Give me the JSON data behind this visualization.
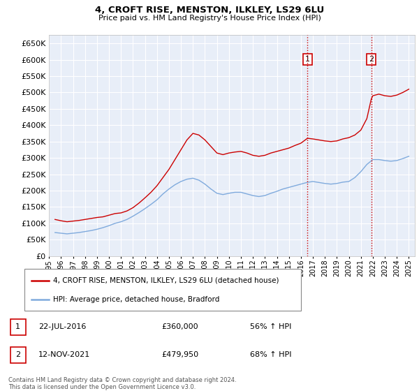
{
  "title": "4, CROFT RISE, MENSTON, ILKLEY, LS29 6LU",
  "subtitle": "Price paid vs. HM Land Registry's House Price Index (HPI)",
  "yticks": [
    0,
    50000,
    100000,
    150000,
    200000,
    250000,
    300000,
    350000,
    400000,
    450000,
    500000,
    550000,
    600000,
    650000
  ],
  "ylim": [
    0,
    675000
  ],
  "xlim_start": 1995.0,
  "xlim_end": 2025.5,
  "background_color": "#ffffff",
  "plot_bg_color": "#e8eef8",
  "grid_color": "#ffffff",
  "house_color": "#cc0000",
  "hpi_color": "#7faadd",
  "vline_color": "#cc0000",
  "vline_style": ":",
  "ann1_x": 2016.55,
  "ann2_x": 2021.87,
  "ann1_label": "1",
  "ann2_label": "2",
  "legend_house": "4, CROFT RISE, MENSTON, ILKLEY, LS29 6LU (detached house)",
  "legend_hpi": "HPI: Average price, detached house, Bradford",
  "note1_label": "1",
  "note1_date": "22-JUL-2016",
  "note1_price": "£360,000",
  "note1_hpi": "56% ↑ HPI",
  "note2_label": "2",
  "note2_date": "12-NOV-2021",
  "note2_price": "£479,950",
  "note2_hpi": "68% ↑ HPI",
  "footer": "Contains HM Land Registry data © Crown copyright and database right 2024.\nThis data is licensed under the Open Government Licence v3.0.",
  "house_x": [
    1995.5,
    1996.0,
    1996.5,
    1997.0,
    1997.5,
    1998.0,
    1998.5,
    1999.0,
    1999.5,
    2000.0,
    2000.5,
    2001.0,
    2001.5,
    2002.0,
    2002.5,
    2003.0,
    2003.5,
    2004.0,
    2004.5,
    2005.0,
    2005.5,
    2006.0,
    2006.5,
    2007.0,
    2007.5,
    2008.0,
    2008.5,
    2009.0,
    2009.5,
    2010.0,
    2010.5,
    2011.0,
    2011.5,
    2012.0,
    2012.5,
    2013.0,
    2013.5,
    2014.0,
    2014.5,
    2015.0,
    2015.5,
    2016.0,
    2016.55,
    2017.0,
    2017.5,
    2018.0,
    2018.5,
    2019.0,
    2019.5,
    2020.0,
    2020.5,
    2021.0,
    2021.5,
    2021.87,
    2022.0,
    2022.5,
    2023.0,
    2023.5,
    2024.0,
    2024.5,
    2025.0
  ],
  "house_y": [
    112000,
    108000,
    105000,
    107000,
    109000,
    112000,
    115000,
    118000,
    120000,
    125000,
    130000,
    132000,
    138000,
    148000,
    162000,
    178000,
    195000,
    215000,
    240000,
    265000,
    295000,
    325000,
    355000,
    375000,
    370000,
    355000,
    335000,
    315000,
    310000,
    315000,
    318000,
    320000,
    315000,
    308000,
    305000,
    308000,
    315000,
    320000,
    325000,
    330000,
    338000,
    345000,
    360000,
    358000,
    355000,
    352000,
    350000,
    352000,
    358000,
    362000,
    370000,
    385000,
    420000,
    479950,
    490000,
    495000,
    490000,
    488000,
    492000,
    500000,
    510000
  ],
  "hpi_x": [
    1995.5,
    1996.0,
    1996.5,
    1997.0,
    1997.5,
    1998.0,
    1998.5,
    1999.0,
    1999.5,
    2000.0,
    2000.5,
    2001.0,
    2001.5,
    2002.0,
    2002.5,
    2003.0,
    2003.5,
    2004.0,
    2004.5,
    2005.0,
    2005.5,
    2006.0,
    2006.5,
    2007.0,
    2007.5,
    2008.0,
    2008.5,
    2009.0,
    2009.5,
    2010.0,
    2010.5,
    2011.0,
    2011.5,
    2012.0,
    2012.5,
    2013.0,
    2013.5,
    2014.0,
    2014.5,
    2015.0,
    2015.5,
    2016.0,
    2016.5,
    2017.0,
    2017.5,
    2018.0,
    2018.5,
    2019.0,
    2019.5,
    2020.0,
    2020.5,
    2021.0,
    2021.5,
    2022.0,
    2022.5,
    2023.0,
    2023.5,
    2024.0,
    2024.5,
    2025.0
  ],
  "hpi_y": [
    72000,
    70000,
    68000,
    70000,
    72000,
    75000,
    78000,
    82000,
    87000,
    93000,
    100000,
    105000,
    112000,
    122000,
    133000,
    145000,
    158000,
    172000,
    190000,
    205000,
    218000,
    228000,
    235000,
    238000,
    232000,
    220000,
    205000,
    192000,
    188000,
    192000,
    195000,
    195000,
    190000,
    185000,
    182000,
    185000,
    192000,
    198000,
    205000,
    210000,
    215000,
    220000,
    225000,
    228000,
    225000,
    222000,
    220000,
    222000,
    226000,
    228000,
    240000,
    258000,
    280000,
    295000,
    295000,
    292000,
    290000,
    292000,
    298000,
    305000
  ]
}
